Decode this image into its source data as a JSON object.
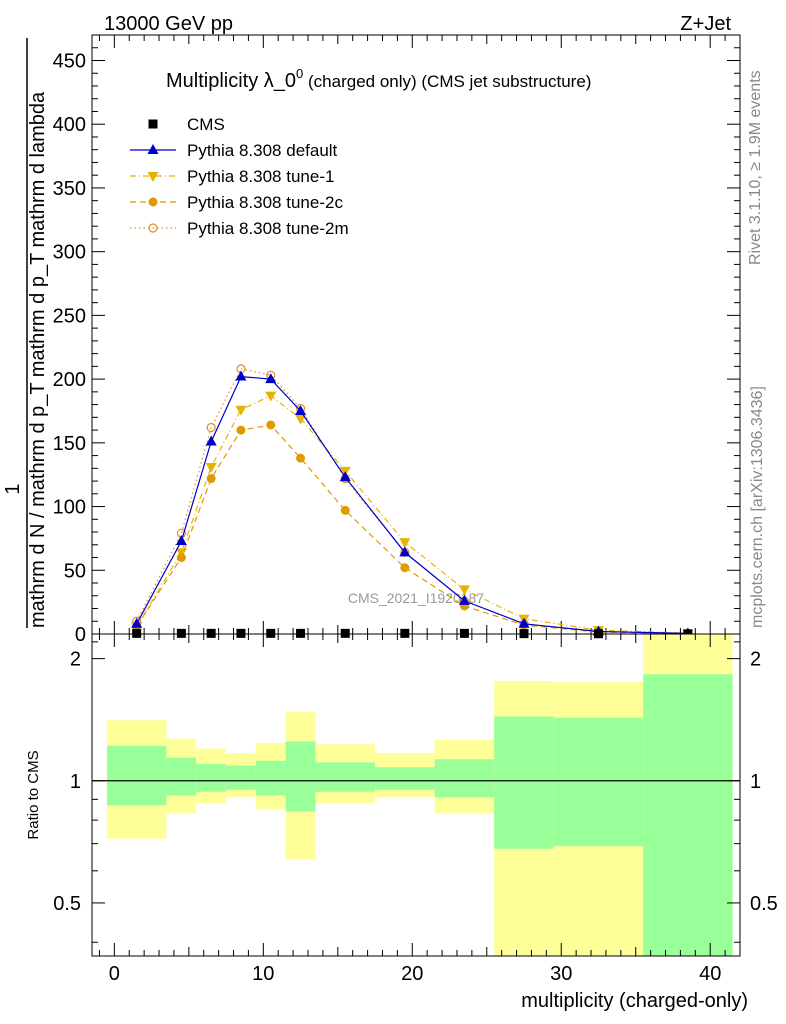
{
  "header": {
    "left": "13000 GeV pp",
    "right": "Z+Jet"
  },
  "side_labels": {
    "rivet": "Rivet 3.1.10, ≥ 1.9M events",
    "mcplots": "mcplots.cern.ch [arXiv:1306.3436]"
  },
  "watermark": "CMS_2021_I1920187",
  "chart_data": [
    {
      "type": "line",
      "title_main": "Multiplicity λ_0",
      "title_sup": "0",
      "title_tail": " (charged only) (CMS jet substructure)",
      "ylabel_parts": {
        "numerator": "1",
        "denominator": "mathrm d N / mathrm d p_T mathrm d p_T mathrm d lambda",
        "top": "mathrm d²N"
      },
      "ylim": [
        0,
        470
      ],
      "xlim": [
        -1.5,
        42
      ],
      "yticks": [
        0,
        50,
        100,
        150,
        200,
        250,
        300,
        350,
        400,
        450
      ],
      "legend_position": "top-left",
      "legend": [
        {
          "label": "CMS",
          "color": "#000000",
          "marker": "square-filled",
          "line": "none"
        },
        {
          "label": "Pythia 8.308 default",
          "color": "#0000cc",
          "marker": "triangle-up-filled",
          "line": "solid"
        },
        {
          "label": "Pythia 8.308 tune-1",
          "color": "#e6b400",
          "marker": "triangle-down-filled",
          "line": "dashdot"
        },
        {
          "label": "Pythia 8.308 tune-2c",
          "color": "#e09a00",
          "marker": "circle-filled",
          "line": "dashed"
        },
        {
          "label": "Pythia 8.308 tune-2m",
          "color": "#e38a2a",
          "marker": "circle-open",
          "line": "dotted"
        }
      ],
      "series": [
        {
          "name": "CMS",
          "x": [
            1.5,
            4.5,
            6.5,
            8.5,
            10.5,
            12.5,
            15.5,
            19.5,
            23.5,
            27.5,
            32.5,
            38.5
          ],
          "y": [
            0.5,
            0.5,
            0.5,
            0.5,
            0.5,
            0.5,
            0.5,
            0.5,
            0.5,
            0.3,
            0.2,
            0.1
          ]
        },
        {
          "name": "Pythia 8.308 default",
          "x": [
            1.5,
            4.5,
            6.5,
            8.5,
            10.5,
            12.5,
            15.5,
            19.5,
            23.5,
            27.5,
            32.5,
            38.5
          ],
          "y": [
            8,
            73,
            151,
            202,
            200,
            175,
            123,
            64,
            26,
            8,
            2,
            0.5
          ]
        },
        {
          "name": "Pythia 8.308 tune-1",
          "x": [
            1.5,
            4.5,
            6.5,
            8.5,
            10.5,
            12.5,
            15.5,
            19.5,
            23.5,
            27.5,
            32.5,
            38.5
          ],
          "y": [
            6,
            64,
            131,
            176,
            187,
            169,
            128,
            72,
            35,
            12,
            3,
            0.6
          ]
        },
        {
          "name": "Pythia 8.308 tune-2c",
          "x": [
            1.5,
            4.5,
            6.5,
            8.5,
            10.5,
            12.5,
            15.5,
            19.5,
            23.5,
            27.5,
            32.5,
            38.5
          ],
          "y": [
            6,
            60,
            122,
            160,
            164,
            138,
            97,
            52,
            22,
            7,
            1.5,
            0.3
          ]
        },
        {
          "name": "Pythia 8.308 tune-2m",
          "x": [
            1.5,
            4.5,
            6.5,
            8.5,
            10.5,
            12.5,
            15.5,
            19.5,
            23.5,
            27.5,
            32.5,
            38.5
          ],
          "y": [
            10,
            79,
            162,
            208,
            203,
            177,
            122,
            64,
            26,
            8,
            2,
            0.5
          ]
        }
      ]
    },
    {
      "type": "area",
      "ylabel": "Ratio to CMS",
      "xlabel": "multiplicity (charged-only)",
      "ylim": [
        0.37,
        2.3
      ],
      "xlim": [
        -1.5,
        42
      ],
      "xticks": [
        0,
        10,
        20,
        30,
        40
      ],
      "yticks": [
        0.5,
        1,
        2
      ],
      "reference_line": 1,
      "band_colors": {
        "inner": "#99ff99",
        "outer": "#ffff99"
      },
      "bins": [
        {
          "x0": -0.5,
          "x1": 3.5,
          "inner": [
            0.87,
            1.22
          ],
          "outer": [
            0.72,
            1.41
          ]
        },
        {
          "x0": 3.5,
          "x1": 5.5,
          "inner": [
            0.92,
            1.14
          ],
          "outer": [
            0.83,
            1.27
          ]
        },
        {
          "x0": 5.5,
          "x1": 7.5,
          "inner": [
            0.94,
            1.1
          ],
          "outer": [
            0.88,
            1.2
          ]
        },
        {
          "x0": 7.5,
          "x1": 9.5,
          "inner": [
            0.95,
            1.09
          ],
          "outer": [
            0.91,
            1.17
          ]
        },
        {
          "x0": 9.5,
          "x1": 11.5,
          "inner": [
            0.92,
            1.12
          ],
          "outer": [
            0.85,
            1.24
          ]
        },
        {
          "x0": 11.5,
          "x1": 13.5,
          "inner": [
            0.84,
            1.25
          ],
          "outer": [
            0.64,
            1.48
          ]
        },
        {
          "x0": 13.5,
          "x1": 17.5,
          "inner": [
            0.94,
            1.11
          ],
          "outer": [
            0.88,
            1.23
          ]
        },
        {
          "x0": 17.5,
          "x1": 21.5,
          "inner": [
            0.95,
            1.08
          ],
          "outer": [
            0.91,
            1.17
          ]
        },
        {
          "x0": 21.5,
          "x1": 25.5,
          "inner": [
            0.91,
            1.13
          ],
          "outer": [
            0.83,
            1.26
          ]
        },
        {
          "x0": 25.5,
          "x1": 29.5,
          "inner": [
            0.68,
            1.44
          ],
          "outer": [
            0.37,
            1.76
          ]
        },
        {
          "x0": 29.5,
          "x1": 35.5,
          "inner": [
            0.69,
            1.43
          ],
          "outer": [
            0.37,
            1.75
          ]
        },
        {
          "x0": 35.5,
          "x1": 41.5,
          "inner": [
            0.37,
            1.83
          ],
          "outer": [
            0.37,
            2.3
          ]
        }
      ]
    }
  ]
}
